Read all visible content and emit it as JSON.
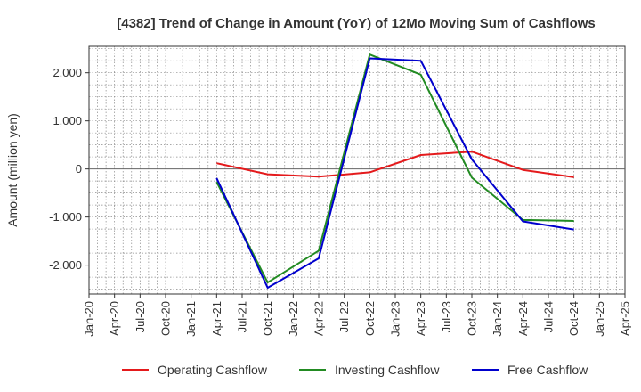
{
  "chart_data": {
    "type": "line",
    "title": "[4382]  Trend of Change in Amount (YoY) of 12Mo Moving Sum of Cashflows",
    "xlabel": "",
    "ylabel": "Amount (million yen)",
    "ylim": [
      -2600,
      2550
    ],
    "yticks": [
      2000,
      1000,
      0,
      -1000,
      -2000
    ],
    "ytick_labels": [
      "2,000",
      "1,000",
      "0",
      "-1,000",
      "-2,000"
    ],
    "categories": [
      "Jan-20",
      "Apr-20",
      "Jul-20",
      "Oct-20",
      "Jan-21",
      "Apr-21",
      "Jul-21",
      "Oct-21",
      "Jan-22",
      "Apr-22",
      "Jul-22",
      "Oct-22",
      "Jan-23",
      "Apr-23",
      "Jul-23",
      "Oct-23",
      "Jan-24",
      "Apr-24",
      "Jul-24",
      "Oct-24",
      "Jan-25",
      "Apr-25"
    ],
    "grid": true,
    "legend_position": "bottom",
    "series": [
      {
        "name": "Operating Cashflow",
        "color": "#e41a1c",
        "points": [
          {
            "x": "Apr-21",
            "y": 120
          },
          {
            "x": "Oct-21",
            "y": -110
          },
          {
            "x": "Apr-22",
            "y": -160
          },
          {
            "x": "Oct-22",
            "y": -70
          },
          {
            "x": "Apr-23",
            "y": 290
          },
          {
            "x": "Oct-23",
            "y": 360
          },
          {
            "x": "Apr-24",
            "y": -20
          },
          {
            "x": "Oct-24",
            "y": -170
          }
        ]
      },
      {
        "name": "Investing Cashflow",
        "color": "#228b22",
        "points": [
          {
            "x": "Apr-21",
            "y": -270
          },
          {
            "x": "Oct-21",
            "y": -2360
          },
          {
            "x": "Apr-22",
            "y": -1700
          },
          {
            "x": "Oct-22",
            "y": 2380
          },
          {
            "x": "Apr-23",
            "y": 1960
          },
          {
            "x": "Oct-23",
            "y": -180
          },
          {
            "x": "Apr-24",
            "y": -1060
          },
          {
            "x": "Oct-24",
            "y": -1080
          }
        ]
      },
      {
        "name": "Free Cashflow",
        "color": "#0000cd",
        "points": [
          {
            "x": "Apr-21",
            "y": -190
          },
          {
            "x": "Oct-21",
            "y": -2470
          },
          {
            "x": "Apr-22",
            "y": -1860
          },
          {
            "x": "Oct-22",
            "y": 2300
          },
          {
            "x": "Apr-23",
            "y": 2250
          },
          {
            "x": "Oct-23",
            "y": 200
          },
          {
            "x": "Apr-24",
            "y": -1090
          },
          {
            "x": "Oct-24",
            "y": -1260
          }
        ]
      }
    ]
  }
}
